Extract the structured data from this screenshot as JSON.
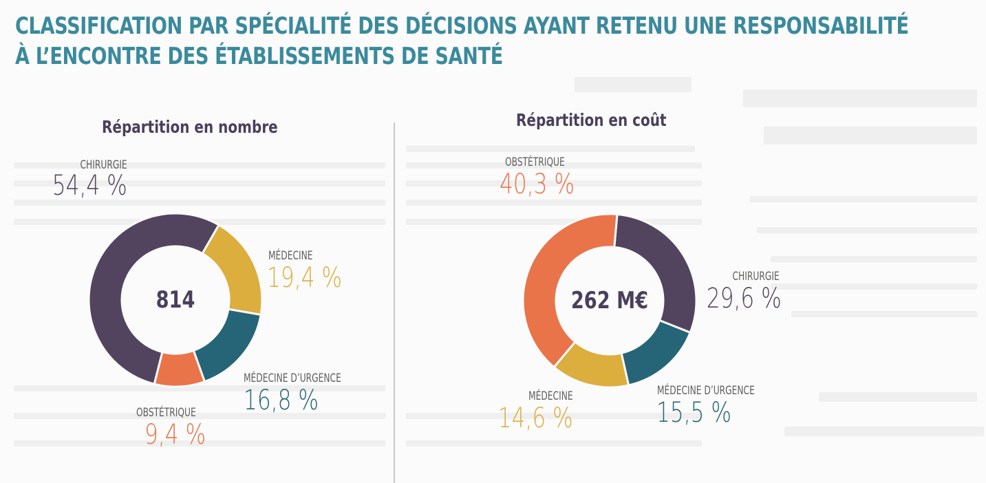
{
  "title_lines": [
    "CLASSIFICATION PAR SPÉCIALITÉ DES DÉCISIONS AYANT RETENU UNE RESPONSABILITÉ",
    "À L’ENCONTRE DES ÉTABLISSEMENTS DE SANTÉ"
  ],
  "colors": {
    "title": "#3a8a9c",
    "chirurgie": "#52445e",
    "medecine": "#dcae3e",
    "medecine_urgence": "#266577",
    "obstetrique": "#e9744a",
    "label_gray": "#5e5e5e"
  },
  "chart_data": [
    {
      "type": "pie",
      "variant": "donut",
      "title": "Répartition en nombre",
      "center_label": "814",
      "start_angle_deg": 30,
      "direction": "clockwise",
      "slices": [
        {
          "name": "MÉDECINE",
          "value": 19.4,
          "label": "19,4 %",
          "color": "#dcae3e"
        },
        {
          "name": "MÉDECINE D’URGENCE",
          "value": 16.8,
          "label": "16,8 %",
          "color": "#266577"
        },
        {
          "name": "OBSTÉTRIQUE",
          "value": 9.4,
          "label": "9,4 %",
          "color": "#e9744a"
        },
        {
          "name": "CHIRURGIE",
          "value": 54.4,
          "label": "54,4 %",
          "color": "#52445e"
        }
      ]
    },
    {
      "type": "pie",
      "variant": "donut",
      "title": "Répartition en coût",
      "center_label": "262 M€",
      "start_angle_deg": 5,
      "direction": "clockwise",
      "slices": [
        {
          "name": "CHIRURGIE",
          "value": 29.6,
          "label": "29,6 %",
          "color": "#52445e"
        },
        {
          "name": "MÉDECINE D’URGENCE",
          "value": 15.5,
          "label": "15,5 %",
          "color": "#266577"
        },
        {
          "name": "MÉDECINE",
          "value": 14.6,
          "label": "14,6 %",
          "color": "#dcae3e"
        },
        {
          "name": "OBSTÉTRIQUE",
          "value": 40.3,
          "label": "40,3 %",
          "color": "#e9744a"
        }
      ]
    }
  ]
}
